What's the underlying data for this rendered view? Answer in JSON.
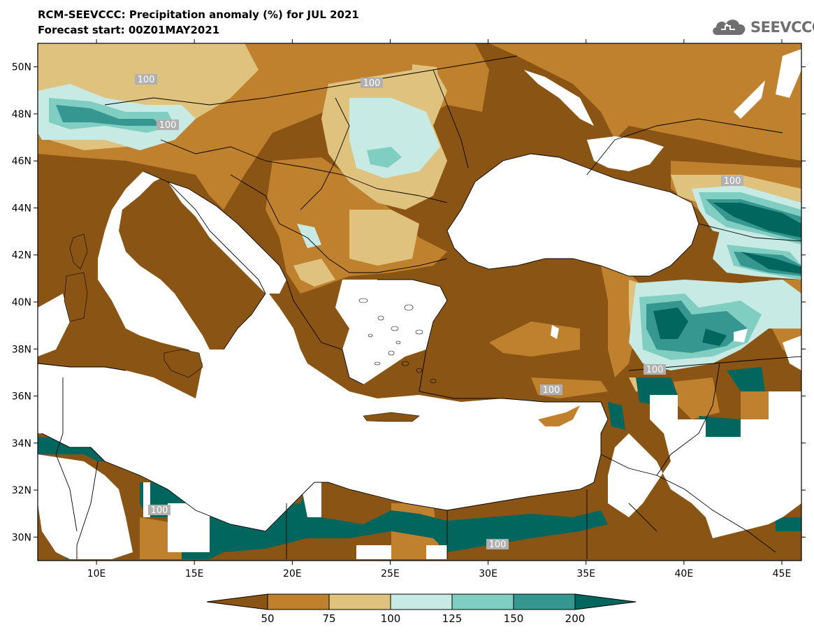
{
  "title": "RCM-SEEVCCC: Precipitation anomaly (%) for JUL 2021",
  "subtitle": "Forecast start: 00Z01MAY2021",
  "logo_text": "SEEVCCC",
  "logo_icon": "cloud-icon",
  "map": {
    "lon_range": [
      7,
      46
    ],
    "lat_range": [
      29,
      51
    ],
    "lat_ticks": [
      "50N",
      "48N",
      "46N",
      "44N",
      "42N",
      "40N",
      "38N",
      "36N",
      "34N",
      "32N",
      "30N"
    ],
    "lon_ticks": [
      "10E",
      "15E",
      "20E",
      "25E",
      "30E",
      "35E",
      "40E",
      "45E"
    ],
    "contour_labels": [
      "100",
      "100",
      "100",
      "100",
      "100",
      "100",
      "100",
      "100"
    ]
  },
  "colorbar": {
    "labels": [
      "50",
      "75",
      "100",
      "125",
      "150",
      "200"
    ],
    "colors": {
      "below_50": "#8a5414",
      "50_75": "#bf812d",
      "75_100": "#dfc27d",
      "100_125": "#c7eae5",
      "125_150": "#80cdc1",
      "150_200": "#35978f",
      "above_200": "#01665e"
    }
  }
}
